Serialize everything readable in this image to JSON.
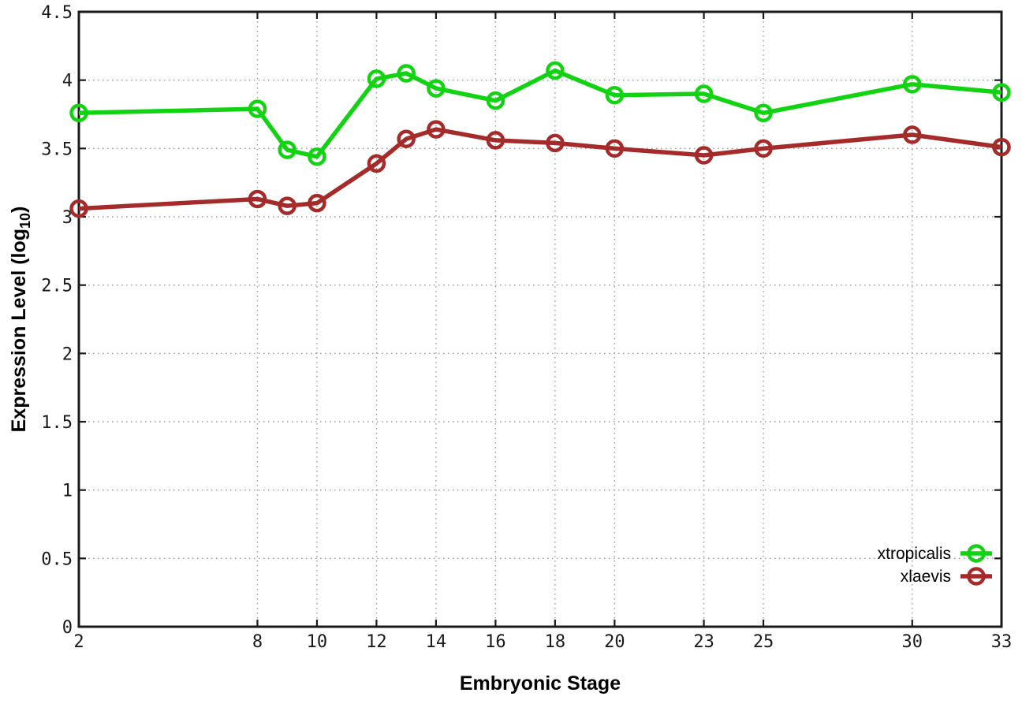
{
  "chart_data": {
    "type": "line",
    "title": "",
    "xlabel": "Embryonic Stage",
    "ylabel": {
      "text": "Expression Level (log",
      "sub": "10",
      "suffix": ")"
    },
    "xlim": [
      2,
      33
    ],
    "ylim": [
      0,
      4.5
    ],
    "grid": true,
    "grid_style": "dotted",
    "legend_position": "inside-bottom-right",
    "xticks": {
      "values": [
        2,
        8,
        10,
        12,
        14,
        16,
        18,
        20,
        23,
        25,
        30,
        33
      ],
      "labels": [
        "2",
        "8",
        "10",
        "12",
        "14",
        "16",
        "18",
        "20",
        "23",
        "25",
        "30",
        "33"
      ]
    },
    "yticks": {
      "values": [
        0,
        0.5,
        1,
        1.5,
        2,
        2.5,
        3,
        3.5,
        4,
        4.5
      ],
      "labels": [
        "0",
        "0.5",
        "1",
        "1.5",
        "2",
        "2.5",
        "3",
        "3.5",
        "4",
        "4.5"
      ]
    },
    "x": [
      2,
      8,
      9,
      10,
      12,
      13,
      14,
      16,
      18,
      20,
      23,
      25,
      30,
      33
    ],
    "series": [
      {
        "name": "xtropicalis",
        "color": "#12d312",
        "marker": "open-circle",
        "values": [
          3.76,
          3.79,
          3.49,
          3.44,
          4.01,
          4.05,
          3.94,
          3.85,
          4.07,
          3.89,
          3.9,
          3.76,
          3.97,
          3.91
        ]
      },
      {
        "name": "xlaevis",
        "color": "#a52a2a",
        "marker": "open-circle",
        "values": [
          3.06,
          3.13,
          3.08,
          3.1,
          3.39,
          3.57,
          3.64,
          3.56,
          3.54,
          3.5,
          3.45,
          3.5,
          3.6,
          3.51
        ]
      }
    ],
    "colors": {
      "border": "#1a1a1a",
      "grid": "#999999",
      "background": "#ffffff"
    }
  }
}
